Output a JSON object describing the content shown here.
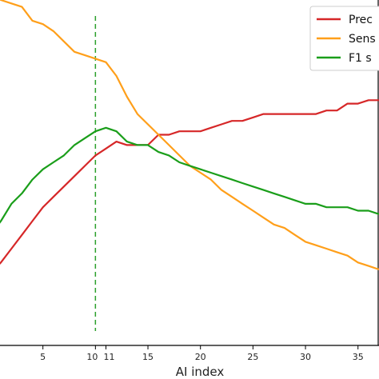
{
  "chart_data": {
    "type": "line",
    "xlabel": "AI index",
    "ylabel": "",
    "title": "",
    "xlim": [
      0,
      37
    ],
    "ylim": [
      0,
      1
    ],
    "x_ticks": [
      5,
      10,
      11,
      15,
      20,
      25,
      30,
      35
    ],
    "x_tick_labels": [
      "5",
      "10",
      "11",
      "15",
      "20",
      "25",
      "30",
      "35"
    ],
    "grid": false,
    "legend": {
      "placement": "top-right"
    },
    "vline": {
      "x": 10,
      "color": "#2ca02c",
      "style": "dashed"
    },
    "series": [
      {
        "name": "Prec",
        "color": "#d62728",
        "x": [
          0,
          1,
          2,
          3,
          4,
          5,
          6,
          7,
          8,
          9,
          10,
          11,
          12,
          13,
          14,
          15,
          16,
          17,
          18,
          19,
          20,
          21,
          22,
          23,
          24,
          25,
          26,
          27,
          28,
          29,
          30,
          31,
          32,
          33,
          34,
          35,
          36,
          37
        ],
        "y": [
          0.21,
          0.24,
          0.28,
          0.32,
          0.36,
          0.4,
          0.43,
          0.46,
          0.49,
          0.52,
          0.55,
          0.57,
          0.59,
          0.58,
          0.58,
          0.58,
          0.61,
          0.61,
          0.62,
          0.62,
          0.62,
          0.63,
          0.64,
          0.65,
          0.65,
          0.66,
          0.67,
          0.67,
          0.67,
          0.67,
          0.67,
          0.67,
          0.68,
          0.68,
          0.7,
          0.7,
          0.71,
          0.71
        ]
      },
      {
        "name": "Sens",
        "color": "#ff9f1a",
        "x": [
          0,
          1,
          2,
          3,
          4,
          5,
          6,
          7,
          8,
          9,
          10,
          11,
          12,
          13,
          14,
          15,
          16,
          17,
          18,
          19,
          20,
          21,
          22,
          23,
          24,
          25,
          26,
          27,
          28,
          29,
          30,
          31,
          32,
          33,
          34,
          35,
          36,
          37
        ],
        "y": [
          1.02,
          1.0,
          0.99,
          0.98,
          0.94,
          0.93,
          0.91,
          0.88,
          0.85,
          0.84,
          0.83,
          0.82,
          0.78,
          0.72,
          0.67,
          0.64,
          0.61,
          0.58,
          0.55,
          0.52,
          0.5,
          0.48,
          0.45,
          0.43,
          0.41,
          0.39,
          0.37,
          0.35,
          0.34,
          0.32,
          0.3,
          0.29,
          0.28,
          0.27,
          0.26,
          0.24,
          0.23,
          0.22
        ]
      },
      {
        "name": "F1 s",
        "color": "#1a9e1a",
        "x": [
          0,
          1,
          2,
          3,
          4,
          5,
          6,
          7,
          8,
          9,
          10,
          11,
          12,
          13,
          14,
          15,
          16,
          17,
          18,
          19,
          20,
          21,
          22,
          23,
          24,
          25,
          26,
          27,
          28,
          29,
          30,
          31,
          32,
          33,
          34,
          35,
          36,
          37
        ],
        "y": [
          0.32,
          0.36,
          0.41,
          0.44,
          0.48,
          0.51,
          0.53,
          0.55,
          0.58,
          0.6,
          0.62,
          0.63,
          0.62,
          0.59,
          0.58,
          0.58,
          0.56,
          0.55,
          0.53,
          0.52,
          0.51,
          0.5,
          0.49,
          0.48,
          0.47,
          0.46,
          0.45,
          0.44,
          0.43,
          0.42,
          0.41,
          0.41,
          0.4,
          0.4,
          0.4,
          0.39,
          0.39,
          0.38
        ]
      }
    ]
  }
}
